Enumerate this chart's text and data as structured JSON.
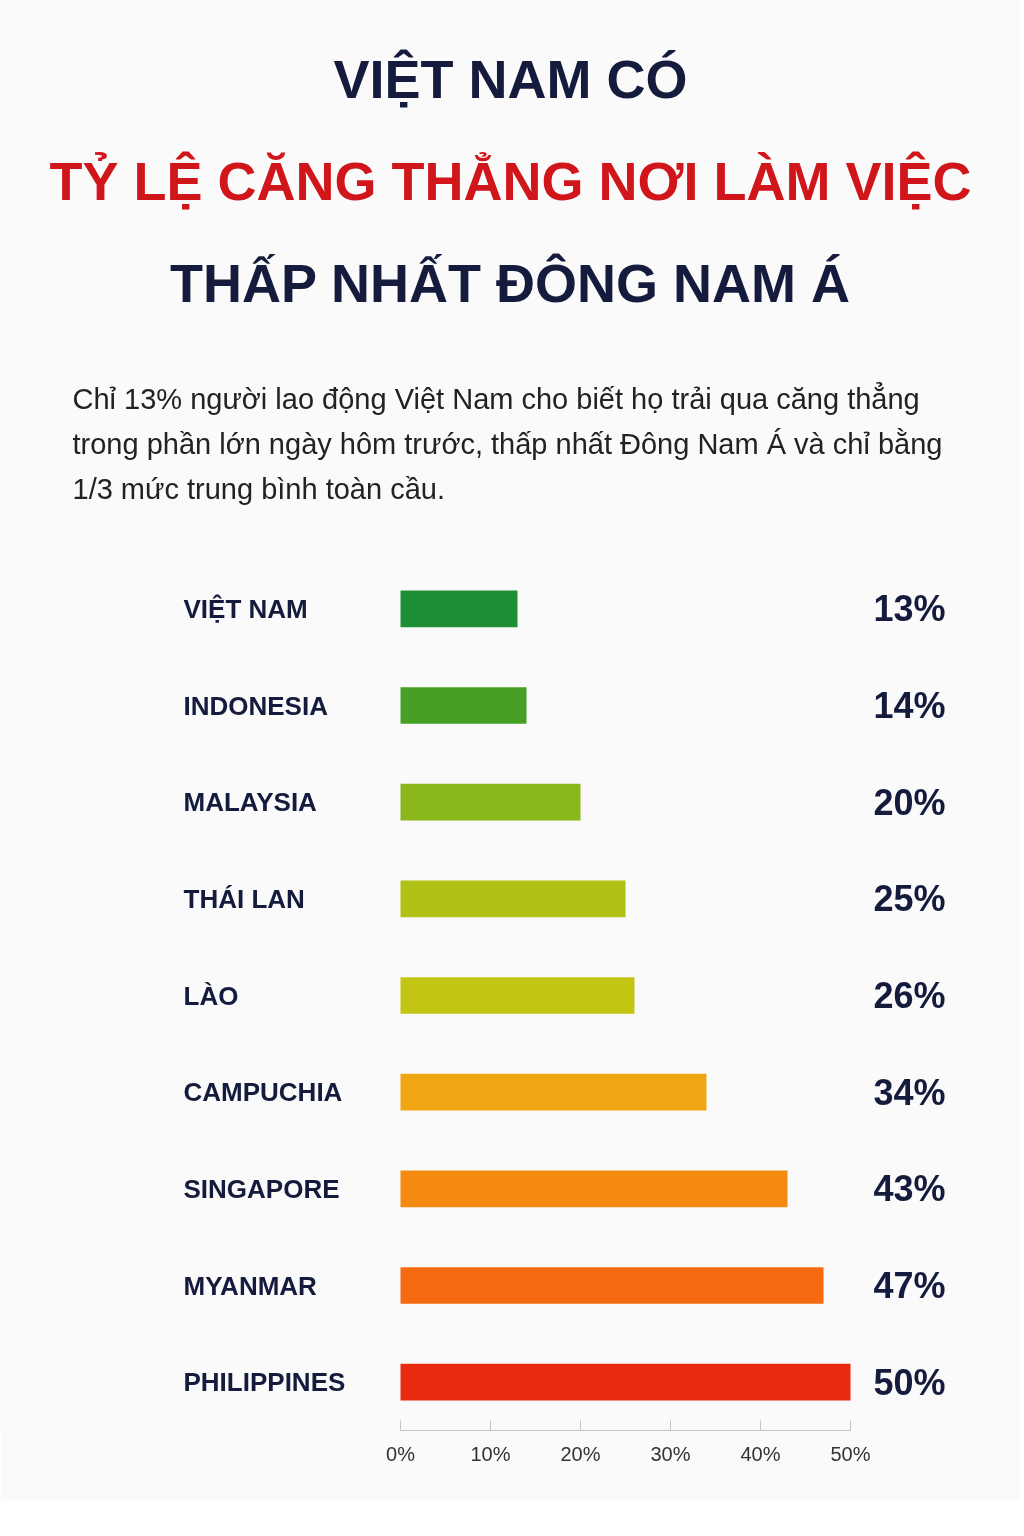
{
  "chart_data": {
    "type": "bar",
    "orientation": "horizontal",
    "title": "VIỆT NAM CÓ\nTỶ LỆ CĂNG THẲNG NƠI LÀM VIỆC\nTHẤP NHẤT ĐÔNG NAM Á",
    "subtitle": "Chỉ 13% người lao động Việt Nam cho biết họ trải qua căng thẳng trong phần lớn ngày hôm trước, thấp nhất Đông Nam Á và chỉ bằng 1/3 mức trung bình toàn cầu.",
    "categories": [
      "VIỆT NAM",
      "INDONESIA",
      "MALAYSIA",
      "THÁI LAN",
      "LÀO",
      "CAMPUCHIA",
      "SINGAPORE",
      "MYANMAR",
      "PHILIPPINES"
    ],
    "values": [
      13,
      14,
      20,
      25,
      26,
      34,
      43,
      47,
      50
    ],
    "colors": [
      "#1f8f35",
      "#45a025",
      "#8ab81c",
      "#b0c015",
      "#c2c612",
      "#f0a512",
      "#f58a10",
      "#f56a10",
      "#ea2a10"
    ],
    "value_labels": [
      "13%",
      "14%",
      "20%",
      "25%",
      "26%",
      "34%",
      "43%",
      "47%",
      "50%"
    ],
    "xlim": [
      0,
      50
    ],
    "xticks": [
      {
        "value": 0,
        "label": "0%"
      },
      {
        "value": 10,
        "label": "10%"
      },
      {
        "value": 20,
        "label": "20%"
      },
      {
        "value": 30,
        "label": "30%"
      },
      {
        "value": 40,
        "label": "40%"
      },
      {
        "value": 50,
        "label": "50%"
      }
    ],
    "grid": false
  }
}
